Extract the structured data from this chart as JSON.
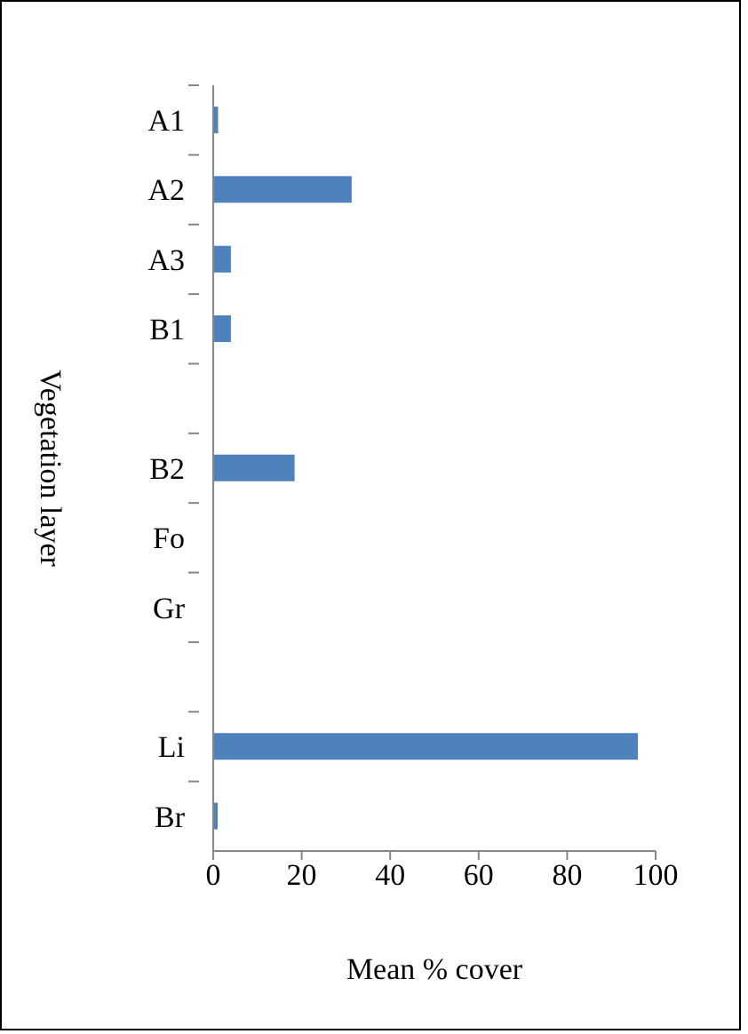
{
  "chart_data": {
    "type": "bar",
    "orientation": "horizontal",
    "xlabel": "Mean % cover",
    "ylabel": "Vegetation layer",
    "categories": [
      "A1",
      "A2",
      "A3",
      "B1",
      null,
      "B2",
      "Fo",
      "Gr",
      null,
      "Li",
      "Br"
    ],
    "values": [
      1.1,
      31.3,
      4,
      4,
      null,
      18.4,
      0,
      0,
      null,
      96,
      1
    ],
    "color": "#4f81bd",
    "xlim": [
      0,
      100
    ],
    "xticks": [
      0,
      20,
      40,
      60,
      80,
      100
    ],
    "grid": false
  }
}
